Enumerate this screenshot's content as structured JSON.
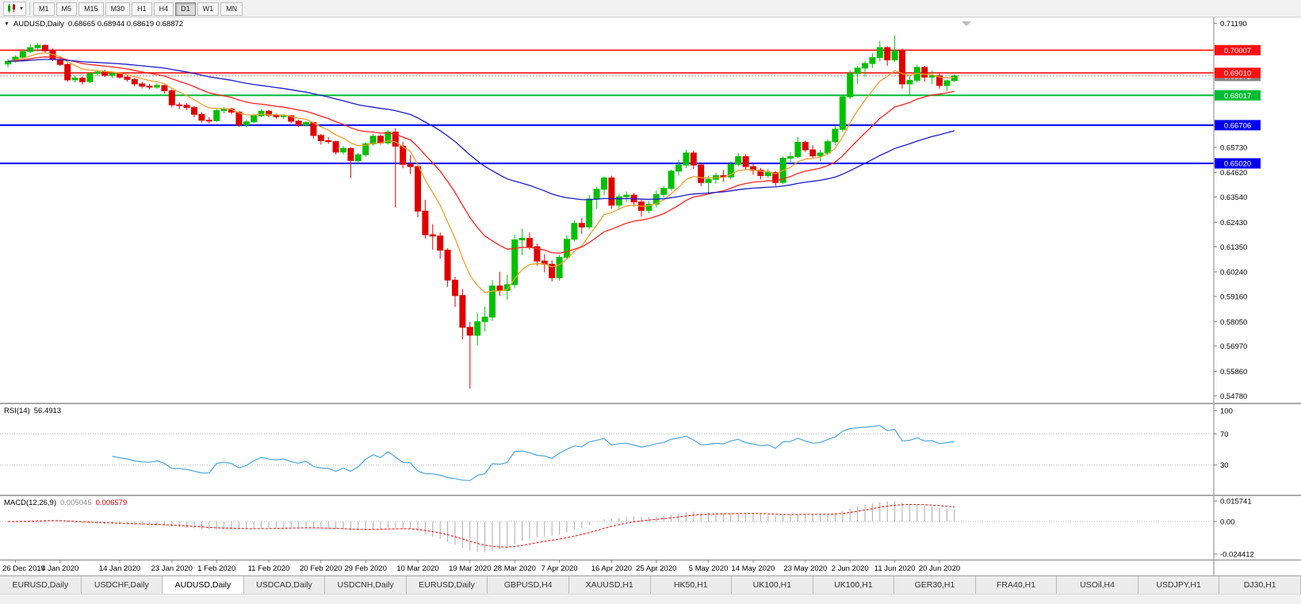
{
  "toolbar": {
    "chart_icon": "candlestick-chart-icon",
    "dropdown_glyph": "▾",
    "timeframes": [
      "M1",
      "M5",
      "M15",
      "M30",
      "H1",
      "H4",
      "D1",
      "W1",
      "MN"
    ],
    "active_timeframe": "D1"
  },
  "chart": {
    "symbol_label": "AUDUSD,Daily",
    "ohlc_label": "0.68665 0.68944 0.68619 0.68872",
    "collapse_glyph": "▼"
  },
  "price_axis": {
    "ticks": [
      "0.71190",
      "0.65730",
      "0.64620",
      "0.63540",
      "0.62430",
      "0.61350",
      "0.60240",
      "0.59160",
      "0.58050",
      "0.56970",
      "0.55860",
      "0.54780"
    ]
  },
  "rsi": {
    "name": "RSI(14)",
    "value": "56.4913",
    "period": 14,
    "axis_labels": [
      "100",
      "70",
      "30"
    ],
    "level_lines": [
      70,
      30
    ],
    "color": "#4aa6dc"
  },
  "macd": {
    "name": "MACD(12,26,9)",
    "value_main": "0.005045",
    "value_signal": "0.006579",
    "fast": 12,
    "slow": 26,
    "signal": 9,
    "axis_labels": [
      "0.015741",
      "0.00",
      "-0.024412"
    ],
    "hist_color": "#a9a9a9",
    "signal_color": "#ff0000"
  },
  "tabs": {
    "items": [
      "EURUSD,Daily",
      "USDCHF,Daily",
      "AUDUSD,Daily",
      "USDCAD,Daily",
      "USDCNH,Daily",
      "EURUSD,Daily",
      "GBPUSD,H4",
      "XAUUSD,H1",
      "HK50,H1",
      "UK100,H1",
      "UK100,H1",
      "GER30,H1",
      "FRA40,H1",
      "USOil,H4",
      "USDJPY,H1",
      "DJ30,H1"
    ],
    "active_index": 2
  },
  "chart_data": {
    "type": "candlestick",
    "symbol": "AUDUSD",
    "timeframe": "Daily",
    "main_scale": {
      "max": 0.7145,
      "min": 0.5448
    },
    "macd_scale": {
      "max": 0.019,
      "min": -0.0285
    },
    "colors": {
      "bull": "#00c000",
      "bear": "#e00000"
    },
    "moving_averages": [
      {
        "period": 8,
        "color": "#f0a02a"
      },
      {
        "period": 20,
        "color": "#ff2020"
      },
      {
        "period": 55,
        "color": "#1a1acd"
      }
    ],
    "hlines": [
      {
        "value": 0.70007,
        "badge": "0.70007",
        "color": "#ff1010",
        "width": 1.6
      },
      {
        "value": 0.6901,
        "badge": "0.69010",
        "color": "#ff1010",
        "width": 1.6
      },
      {
        "value": 0.68017,
        "badge": "0.68017",
        "color": "#00bb33",
        "width": 2
      },
      {
        "value": 0.66706,
        "badge": "0.66706",
        "color": "#0000ee",
        "width": 2
      },
      {
        "value": 0.6502,
        "badge": "0.65020",
        "color": "#0000ee",
        "width": 2
      }
    ],
    "current_price": {
      "value": 0.68872,
      "badge": "0.68872",
      "color": "#848484"
    },
    "date_labels": [
      [
        1,
        "26 Dec 2019"
      ],
      [
        7,
        "4 Jan 2020"
      ],
      [
        15,
        "14 Jan 2020"
      ],
      [
        22,
        "23 Jan 2020"
      ],
      [
        28,
        "1 Feb 2020"
      ],
      [
        35,
        "11 Feb 2020"
      ],
      [
        42,
        "20 Feb 2020"
      ],
      [
        48,
        "29 Feb 2020"
      ],
      [
        55,
        "10 Mar 2020"
      ],
      [
        62,
        "19 Mar 2020"
      ],
      [
        68,
        "28 Mar 2020"
      ],
      [
        74,
        "7 Apr 2020"
      ],
      [
        81,
        "16 Apr 2020"
      ],
      [
        87,
        "25 Apr 2020"
      ],
      [
        94,
        "5 May 2020"
      ],
      [
        100,
        "14 May 2020"
      ],
      [
        107,
        "23 May 2020"
      ],
      [
        113,
        "2 Jun 2020"
      ],
      [
        119,
        "11 Jun 2020"
      ],
      [
        125,
        "20 Jun 2020"
      ]
    ],
    "candles": [
      [
        0.694,
        0.6962,
        0.6926,
        0.6952
      ],
      [
        0.6952,
        0.6978,
        0.6945,
        0.697
      ],
      [
        0.697,
        0.7002,
        0.6962,
        0.6995
      ],
      [
        0.6995,
        0.703,
        0.6988,
        0.7012
      ],
      [
        0.7012,
        0.7032,
        0.6995,
        0.7022
      ],
      [
        0.7022,
        0.7026,
        0.6988,
        0.6998
      ],
      [
        0.6998,
        0.7008,
        0.6952,
        0.696
      ],
      [
        0.696,
        0.6968,
        0.693,
        0.6938
      ],
      [
        0.6938,
        0.6944,
        0.6862,
        0.687
      ],
      [
        0.687,
        0.6888,
        0.6858,
        0.6878
      ],
      [
        0.6878,
        0.6885,
        0.685,
        0.6862
      ],
      [
        0.6862,
        0.6902,
        0.6855,
        0.6898
      ],
      [
        0.6898,
        0.6912,
        0.6888,
        0.6905
      ],
      [
        0.6905,
        0.6915,
        0.6882,
        0.689
      ],
      [
        0.689,
        0.6905,
        0.6878,
        0.6898
      ],
      [
        0.6898,
        0.6904,
        0.6875,
        0.6882
      ],
      [
        0.6882,
        0.689,
        0.6862,
        0.6872
      ],
      [
        0.6872,
        0.6878,
        0.6842,
        0.6852
      ],
      [
        0.6852,
        0.6862,
        0.6832,
        0.6842
      ],
      [
        0.6842,
        0.6852,
        0.6828,
        0.6838
      ],
      [
        0.6838,
        0.6855,
        0.683,
        0.6845
      ],
      [
        0.6845,
        0.6848,
        0.681,
        0.6822
      ],
      [
        0.6822,
        0.6828,
        0.6748,
        0.676
      ],
      [
        0.676,
        0.6772,
        0.6742,
        0.6758
      ],
      [
        0.6758,
        0.6768,
        0.6738,
        0.6748
      ],
      [
        0.6748,
        0.6755,
        0.6705,
        0.6718
      ],
      [
        0.6718,
        0.6728,
        0.6682,
        0.6692
      ],
      [
        0.6692,
        0.6705,
        0.6678,
        0.669
      ],
      [
        0.669,
        0.6742,
        0.6685,
        0.6735
      ],
      [
        0.6735,
        0.675,
        0.6722,
        0.6742
      ],
      [
        0.6742,
        0.6748,
        0.6718,
        0.6728
      ],
      [
        0.6728,
        0.6732,
        0.6662,
        0.6672
      ],
      [
        0.6672,
        0.6695,
        0.666,
        0.6685
      ],
      [
        0.6685,
        0.672,
        0.6678,
        0.6712
      ],
      [
        0.6712,
        0.674,
        0.6705,
        0.6732
      ],
      [
        0.6732,
        0.6738,
        0.6705,
        0.6715
      ],
      [
        0.6715,
        0.6722,
        0.6698,
        0.6708
      ],
      [
        0.6708,
        0.6718,
        0.6698,
        0.6712
      ],
      [
        0.6712,
        0.6715,
        0.6678,
        0.6688
      ],
      [
        0.6688,
        0.6695,
        0.6662,
        0.6672
      ],
      [
        0.6672,
        0.6688,
        0.6665,
        0.6682
      ],
      [
        0.6682,
        0.6685,
        0.6612,
        0.6625
      ],
      [
        0.6625,
        0.6632,
        0.6585,
        0.6602
      ],
      [
        0.6602,
        0.6618,
        0.6588,
        0.6598
      ],
      [
        0.6598,
        0.6602,
        0.6542,
        0.6552
      ],
      [
        0.6552,
        0.6578,
        0.6542,
        0.6568
      ],
      [
        0.6568,
        0.6572,
        0.6438,
        0.6515
      ],
      [
        0.6515,
        0.6548,
        0.6502,
        0.654
      ],
      [
        0.654,
        0.6595,
        0.6532,
        0.6588
      ],
      [
        0.6588,
        0.6632,
        0.658,
        0.6622
      ],
      [
        0.6622,
        0.6628,
        0.6585,
        0.6592
      ],
      [
        0.6592,
        0.6648,
        0.6585,
        0.664
      ],
      [
        0.664,
        0.6658,
        0.631,
        0.6578
      ],
      [
        0.6578,
        0.6598,
        0.648,
        0.6498
      ],
      [
        0.6498,
        0.6538,
        0.6455,
        0.6488
      ],
      [
        0.6488,
        0.6492,
        0.6265,
        0.6292
      ],
      [
        0.6292,
        0.6342,
        0.6172,
        0.6188
      ],
      [
        0.6188,
        0.6235,
        0.6122,
        0.6182
      ],
      [
        0.6182,
        0.6198,
        0.6082,
        0.612
      ],
      [
        0.612,
        0.6128,
        0.5958,
        0.5988
      ],
      [
        0.5988,
        0.6002,
        0.587,
        0.592
      ],
      [
        0.592,
        0.5948,
        0.5728,
        0.578
      ],
      [
        0.578,
        0.5805,
        0.551,
        0.5745
      ],
      [
        0.5745,
        0.5842,
        0.5702,
        0.5805
      ],
      [
        0.5805,
        0.5872,
        0.5762,
        0.5825
      ],
      [
        0.5825,
        0.5988,
        0.5808,
        0.5962
      ],
      [
        0.5962,
        0.6025,
        0.5918,
        0.5942
      ],
      [
        0.5942,
        0.6012,
        0.5902,
        0.5968
      ],
      [
        0.5968,
        0.6188,
        0.5952,
        0.6165
      ],
      [
        0.6165,
        0.6214,
        0.6098,
        0.6172
      ],
      [
        0.6172,
        0.6198,
        0.6122,
        0.6135
      ],
      [
        0.6135,
        0.6148,
        0.6052,
        0.6072
      ],
      [
        0.6072,
        0.6102,
        0.6022,
        0.6058
      ],
      [
        0.6058,
        0.6075,
        0.5982,
        0.5998
      ],
      [
        0.5998,
        0.6098,
        0.5985,
        0.6088
      ],
      [
        0.6088,
        0.6185,
        0.6078,
        0.6168
      ],
      [
        0.6168,
        0.6252,
        0.6158,
        0.6238
      ],
      [
        0.6238,
        0.6262,
        0.6192,
        0.6222
      ],
      [
        0.6222,
        0.6362,
        0.6212,
        0.6345
      ],
      [
        0.6345,
        0.6398,
        0.6302,
        0.6388
      ],
      [
        0.6388,
        0.6445,
        0.6362,
        0.6438
      ],
      [
        0.6438,
        0.6448,
        0.6302,
        0.6318
      ],
      [
        0.6318,
        0.6368,
        0.6298,
        0.6355
      ],
      [
        0.6355,
        0.6378,
        0.6332,
        0.6362
      ],
      [
        0.6362,
        0.6372,
        0.6312,
        0.6332
      ],
      [
        0.6332,
        0.6342,
        0.6268,
        0.6295
      ],
      [
        0.6295,
        0.6335,
        0.6282,
        0.6322
      ],
      [
        0.6322,
        0.6382,
        0.6308,
        0.6365
      ],
      [
        0.6365,
        0.6402,
        0.6352,
        0.6392
      ],
      [
        0.6392,
        0.6475,
        0.6382,
        0.6468
      ],
      [
        0.6468,
        0.6518,
        0.6448,
        0.6495
      ],
      [
        0.6495,
        0.6562,
        0.6482,
        0.6548
      ],
      [
        0.6548,
        0.6558,
        0.6478,
        0.6495
      ],
      [
        0.6495,
        0.6502,
        0.6402,
        0.6418
      ],
      [
        0.6418,
        0.6448,
        0.6372,
        0.6432
      ],
      [
        0.6432,
        0.6462,
        0.6412,
        0.6448
      ],
      [
        0.6448,
        0.6472,
        0.6422,
        0.6442
      ],
      [
        0.6442,
        0.6512,
        0.6432,
        0.6498
      ],
      [
        0.6498,
        0.6548,
        0.6488,
        0.6532
      ],
      [
        0.6532,
        0.6542,
        0.6472,
        0.6488
      ],
      [
        0.6488,
        0.6498,
        0.6452,
        0.6472
      ],
      [
        0.6472,
        0.6482,
        0.6432,
        0.6448
      ],
      [
        0.6448,
        0.6478,
        0.6438,
        0.6462
      ],
      [
        0.6462,
        0.6468,
        0.6402,
        0.6418
      ],
      [
        0.6418,
        0.6532,
        0.6412,
        0.6525
      ],
      [
        0.6525,
        0.6552,
        0.6505,
        0.6532
      ],
      [
        0.6532,
        0.6618,
        0.6525,
        0.6595
      ],
      [
        0.6595,
        0.6602,
        0.6552,
        0.6562
      ],
      [
        0.6562,
        0.6582,
        0.6522,
        0.6535
      ],
      [
        0.6535,
        0.6562,
        0.6512,
        0.6548
      ],
      [
        0.6548,
        0.6608,
        0.6538,
        0.6598
      ],
      [
        0.6598,
        0.6668,
        0.6582,
        0.6652
      ],
      [
        0.6652,
        0.6802,
        0.6642,
        0.6795
      ],
      [
        0.6795,
        0.6912,
        0.6785,
        0.6898
      ],
      [
        0.6898,
        0.6932,
        0.6852,
        0.6922
      ],
      [
        0.6922,
        0.6952,
        0.6882,
        0.6942
      ],
      [
        0.6942,
        0.6988,
        0.6922,
        0.6968
      ],
      [
        0.6968,
        0.7042,
        0.6952,
        0.7012
      ],
      [
        0.7012,
        0.7018,
        0.6932,
        0.6958
      ],
      [
        0.6958,
        0.7065,
        0.6948,
        0.6998
      ],
      [
        0.6998,
        0.7008,
        0.6832,
        0.6852
      ],
      [
        0.6852,
        0.6888,
        0.6798,
        0.6868
      ],
      [
        0.6868,
        0.6938,
        0.6858,
        0.6925
      ],
      [
        0.6925,
        0.6932,
        0.6862,
        0.6882
      ],
      [
        0.6882,
        0.6912,
        0.6852,
        0.6888
      ],
      [
        0.6888,
        0.6898,
        0.6832,
        0.6845
      ],
      [
        0.6845,
        0.6872,
        0.682,
        0.6866
      ],
      [
        0.68665,
        0.68944,
        0.68619,
        0.68872
      ]
    ]
  }
}
